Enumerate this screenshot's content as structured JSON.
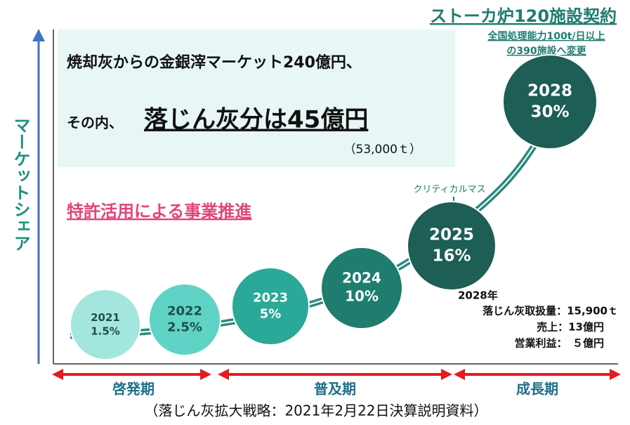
{
  "y_axis_label": "マーケットシェア",
  "top_right": {
    "title": "ストーカ炉120施設契約",
    "lines": [
      "全国処理能力100t/日以上",
      "の390施設へ変更"
    ]
  },
  "headline": {
    "line1": "焼却灰からの金銀滓マーケット240億円、",
    "line2_prefix": "その内、",
    "line2_emphasis": "落じん灰分は45億円",
    "note": "（53,000ｔ）"
  },
  "subheading": "特許活用による事業推進",
  "milestones": [
    {
      "year": "2021",
      "share": "1.5%"
    },
    {
      "year": "2022",
      "share": "2.5%"
    },
    {
      "year": "2023",
      "share": "5%"
    },
    {
      "year": "2024",
      "share": "10%"
    },
    {
      "year": "2025",
      "share": "16%"
    },
    {
      "year": "2028",
      "share": "30%"
    }
  ],
  "critical_mass": "クリティカルマス",
  "details": {
    "year": "2028年",
    "lines": [
      "落じん灰取扱量：15,900ｔ",
      "売上：13億円",
      "営業利益：　５億円"
    ]
  },
  "phases": [
    "啓発期",
    "普及期",
    "成長期"
  ],
  "caption": "（落じん灰拡大戦略：2021年2月22日決算説明資料）"
}
